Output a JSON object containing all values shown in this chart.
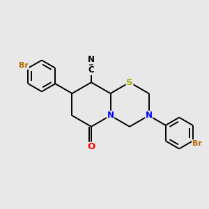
{
  "background_color": "#e8e8e8",
  "bond_color": "#000000",
  "line_width": 1.4,
  "S_color": "#aaaa00",
  "N_color": "#0000ff",
  "O_color": "#ff0000",
  "Br_color": "#bb6600",
  "C_color": "#000000",
  "font_size": 8.5,
  "xlim": [
    -3.8,
    3.8
  ],
  "ylim": [
    -3.8,
    3.8
  ]
}
